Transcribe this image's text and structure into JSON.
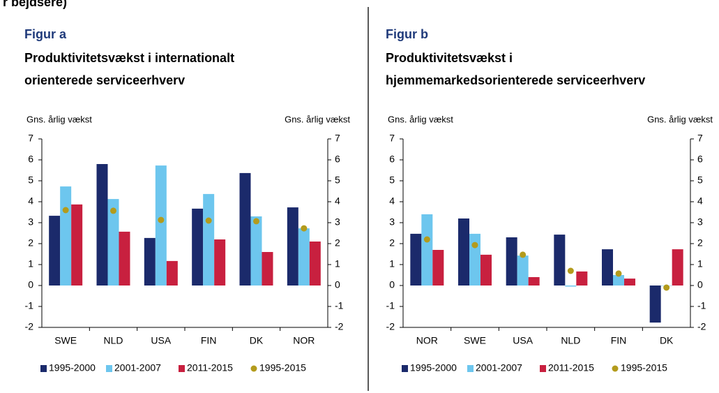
{
  "header_fragment": "r bejdsere)",
  "chart_data": [
    {
      "type": "bar",
      "label": "Figur a",
      "title": [
        "Produktivitetsvækst i internationalt",
        "orienterede serviceerhverv"
      ],
      "ylabel": "Gns. årlig vækst",
      "y2label": "Gns. årlig vækst",
      "categories": [
        "SWE",
        "NLD",
        "USA",
        "FIN",
        "DK",
        "NOR"
      ],
      "ylim": [
        -2,
        7
      ],
      "yticks": [
        -2,
        -1,
        0,
        1,
        2,
        3,
        4,
        5,
        6,
        7
      ],
      "y2lim": [
        -2,
        7
      ],
      "y2ticks": [
        -2,
        -1,
        0,
        1,
        2,
        3,
        4,
        5,
        6,
        7
      ],
      "series": [
        {
          "name": "1995-2000",
          "color": "#1b2a6b",
          "values": [
            3.33,
            5.8,
            2.27,
            3.67,
            5.37,
            3.73
          ]
        },
        {
          "name": "2001-2007",
          "color": "#6dc6ee",
          "values": [
            4.73,
            4.13,
            5.73,
            4.37,
            3.3,
            2.73
          ]
        },
        {
          "name": "2011-2015",
          "color": "#c8203f",
          "values": [
            3.87,
            2.57,
            1.17,
            2.2,
            1.6,
            2.1
          ]
        },
        {
          "name": "1995-2015",
          "color": "#b39b1c",
          "type": "scatter",
          "values": [
            3.6,
            3.57,
            3.13,
            3.1,
            3.07,
            2.73
          ]
        }
      ]
    },
    {
      "type": "bar",
      "label": "Figur b",
      "title": [
        "Produktivitetsvækst i",
        "hjemmemarkedsorienterede serviceerhverv"
      ],
      "ylabel": "Gns. årlig vækst",
      "y2label": "Gns. årlig vækst",
      "categories": [
        "NOR",
        "SWE",
        "USA",
        "NLD",
        "FIN",
        "DK"
      ],
      "ylim": [
        -2,
        7
      ],
      "yticks": [
        -2,
        -1,
        0,
        1,
        2,
        3,
        4,
        5,
        6,
        7
      ],
      "y2lim": [
        -2,
        7
      ],
      "y2ticks": [
        -2,
        -1,
        0,
        1,
        2,
        3,
        4,
        5,
        6,
        7
      ],
      "series": [
        {
          "name": "1995-2000",
          "color": "#1b2a6b",
          "values": [
            2.47,
            3.2,
            2.3,
            2.43,
            1.73,
            -1.77
          ]
        },
        {
          "name": "2001-2007",
          "color": "#6dc6ee",
          "values": [
            3.4,
            2.47,
            1.43,
            -0.05,
            0.5,
            0
          ]
        },
        {
          "name": "2011-2015",
          "color": "#c8203f",
          "values": [
            1.7,
            1.47,
            0.4,
            0.67,
            0.33,
            1.73
          ]
        },
        {
          "name": "1995-2015",
          "color": "#b39b1c",
          "type": "scatter",
          "values": [
            2.2,
            1.93,
            1.47,
            0.7,
            0.57,
            -0.1
          ]
        }
      ]
    }
  ]
}
